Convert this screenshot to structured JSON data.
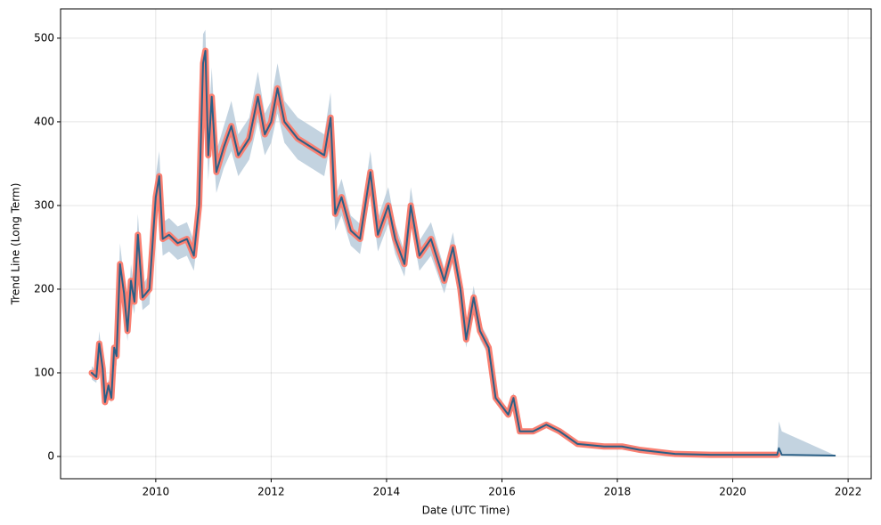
{
  "chart_data": {
    "type": "line",
    "xlabel": "Date (UTC Time)",
    "ylabel": "Trend Line (Long Term)",
    "x": [
      2008.89,
      2008.97,
      2009.02,
      2009.08,
      2009.12,
      2009.18,
      2009.23,
      2009.28,
      2009.32,
      2009.38,
      2009.45,
      2009.51,
      2009.57,
      2009.63,
      2009.69,
      2009.77,
      2009.89,
      2010.0,
      2010.06,
      2010.12,
      2010.23,
      2010.38,
      2010.54,
      2010.66,
      2010.75,
      2010.82,
      2010.86,
      2010.91,
      2010.97,
      2011.05,
      2011.18,
      2011.31,
      2011.43,
      2011.62,
      2011.77,
      2011.89,
      2012.0,
      2012.11,
      2012.23,
      2012.46,
      2012.69,
      2012.92,
      2013.03,
      2013.11,
      2013.22,
      2013.38,
      2013.54,
      2013.72,
      2013.85,
      2014.03,
      2014.15,
      2014.31,
      2014.42,
      2014.57,
      2014.77,
      2015.0,
      2015.15,
      2015.28,
      2015.38,
      2015.51,
      2015.62,
      2015.77,
      2015.89,
      2016.0,
      2016.11,
      2016.2,
      2016.31,
      2016.54,
      2016.77,
      2017.0,
      2017.31,
      2017.77,
      2018.08,
      2018.38,
      2019.0,
      2019.62,
      2020.23,
      2020.77,
      2020.8,
      2020.85,
      2021.77
    ],
    "band": {
      "color": "#b4c8d8",
      "lower": [
        92,
        88,
        120,
        95,
        60,
        78,
        64,
        118,
        108,
        205,
        178,
        138,
        190,
        170,
        240,
        175,
        182,
        285,
        305,
        240,
        245,
        235,
        240,
        222,
        275,
        430,
        445,
        330,
        395,
        315,
        345,
        365,
        335,
        355,
        400,
        360,
        375,
        410,
        375,
        355,
        345,
        335,
        375,
        270,
        288,
        252,
        242,
        315,
        245,
        278,
        242,
        215,
        278,
        222,
        240,
        195,
        232,
        185,
        130,
        176,
        140,
        120,
        64,
        55,
        46,
        64,
        27,
        27,
        35,
        27,
        13,
        11,
        11,
        7,
        2.5,
        1.5,
        1.5,
        1.5,
        2,
        1,
        0.5
      ],
      "upper": [
        108,
        102,
        150,
        115,
        70,
        92,
        76,
        142,
        132,
        255,
        212,
        162,
        230,
        200,
        290,
        205,
        218,
        335,
        365,
        280,
        285,
        275,
        280,
        258,
        325,
        505,
        510,
        390,
        465,
        365,
        395,
        425,
        385,
        405,
        460,
        410,
        425,
        470,
        425,
        405,
        395,
        385,
        435,
        310,
        332,
        288,
        278,
        365,
        285,
        322,
        278,
        245,
        322,
        258,
        280,
        225,
        268,
        215,
        150,
        204,
        160,
        140,
        76,
        65,
        54,
        76,
        33,
        33,
        41,
        33,
        17,
        13,
        13,
        9,
        3.5,
        2.5,
        2.5,
        2.5,
        42,
        30,
        1.5
      ]
    },
    "series": [
      {
        "color": "#fa8072",
        "width": 7,
        "values": [
          100,
          95,
          135,
          105,
          65,
          85,
          70,
          130,
          120,
          230,
          195,
          150,
          210,
          185,
          265,
          190,
          200,
          310,
          335,
          260,
          265,
          255,
          260,
          240,
          300,
          470,
          485,
          360,
          430,
          340,
          370,
          395,
          360,
          380,
          430,
          385,
          400,
          440,
          400,
          380,
          370,
          360,
          405,
          290,
          310,
          270,
          260,
          340,
          265,
          300,
          260,
          230,
          300,
          240,
          260,
          210,
          250,
          200,
          140,
          190,
          150,
          130,
          70,
          60,
          50,
          70,
          30,
          30,
          38,
          30,
          15,
          12,
          12,
          8,
          3,
          2,
          2,
          2,
          null,
          null,
          null
        ]
      },
      {
        "color": "#2a5f86",
        "width": 2,
        "values": [
          100,
          95,
          135,
          105,
          65,
          85,
          70,
          130,
          120,
          230,
          195,
          150,
          210,
          185,
          265,
          190,
          200,
          310,
          335,
          260,
          265,
          255,
          260,
          240,
          300,
          470,
          485,
          360,
          430,
          340,
          370,
          395,
          360,
          380,
          430,
          385,
          400,
          440,
          400,
          380,
          370,
          360,
          405,
          290,
          310,
          270,
          260,
          340,
          265,
          300,
          260,
          230,
          300,
          240,
          260,
          210,
          250,
          200,
          140,
          190,
          150,
          130,
          70,
          60,
          50,
          70,
          30,
          30,
          38,
          30,
          15,
          12,
          12,
          8,
          3,
          2,
          2,
          2,
          10,
          2,
          1
        ]
      }
    ],
    "xlim": [
      2008.35,
      2022.4
    ],
    "ylim": [
      -26.6,
      535
    ],
    "xticks": [
      2010,
      2012,
      2014,
      2016,
      2018,
      2020,
      2022
    ],
    "yticks": [
      0,
      100,
      200,
      300,
      400,
      500
    ],
    "grid": true
  }
}
